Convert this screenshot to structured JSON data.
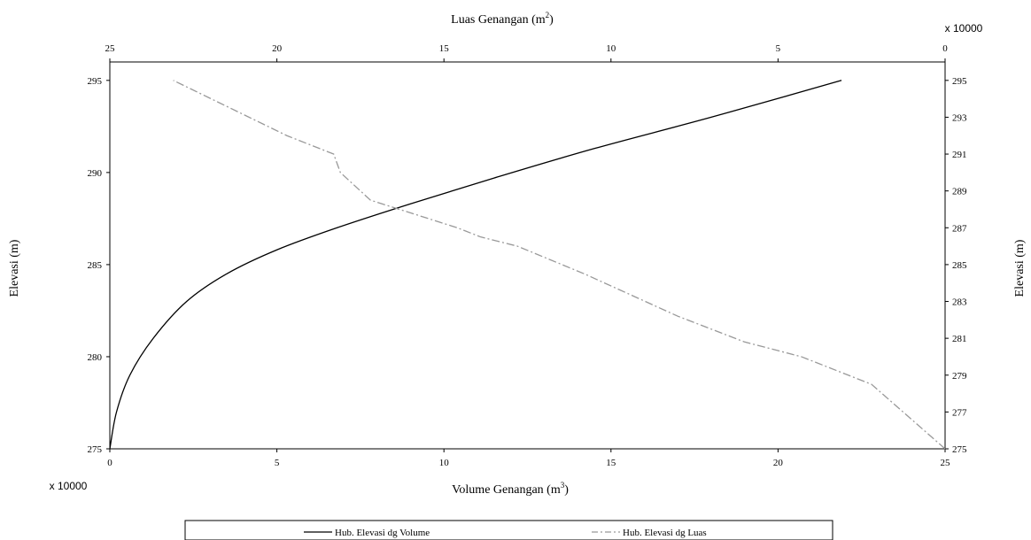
{
  "chart_data": {
    "type": "line",
    "top_axis": {
      "label_main": "Luas Genangan (m",
      "label_sup": "2",
      "label_close": ")",
      "multiplier": "x 10000",
      "range": [
        25,
        0
      ],
      "ticks": [
        "25",
        "20",
        "15",
        "10",
        "5",
        "0"
      ]
    },
    "bottom_axis": {
      "label_main": "Volume  Genangan (m",
      "label_sup": "3",
      "label_close": ")",
      "multiplier": "x 10000",
      "range": [
        0,
        25
      ],
      "ticks": [
        "0",
        "5",
        "10",
        "15",
        "20",
        "25"
      ]
    },
    "left_axis": {
      "label": "Elevasi (m)",
      "range": [
        275,
        296
      ],
      "ticks": [
        "275",
        "280",
        "285",
        "290",
        "295"
      ]
    },
    "right_axis": {
      "label": "Elevasi (m)",
      "range": [
        275,
        296
      ],
      "ticks": [
        "275",
        "277",
        "279",
        "281",
        "283",
        "285",
        "287",
        "289",
        "291",
        "293",
        "295"
      ]
    },
    "series": [
      {
        "name": "Hub. Elevasi dg Volume",
        "axis": "bottom",
        "style": "solid",
        "color": "#000000",
        "x": [
          0,
          0.2,
          0.6,
          1.3,
          2.3,
          3.5,
          5.0,
          6.8,
          9.0,
          11.5,
          14.5,
          18.0,
          21.9
        ],
        "y": [
          275,
          277,
          279,
          281,
          283,
          284.5,
          285.8,
          287,
          288.3,
          289.7,
          291.3,
          293,
          295
        ]
      },
      {
        "name": "Hub. Elevasi dg Luas",
        "axis": "top",
        "style": "dash-dot",
        "color": "#999999",
        "x": [
          0,
          2.2,
          4.3,
          6.0,
          8.0,
          10.8,
          12.8,
          13.9,
          14.6,
          17.2,
          18.1,
          18.3,
          19.7,
          23.1
        ],
        "y": [
          275,
          278.5,
          280,
          280.8,
          282.2,
          284.5,
          286,
          286.5,
          287,
          288.5,
          290,
          291,
          292,
          295
        ]
      }
    ],
    "grid": false,
    "legend_position": "bottom"
  }
}
